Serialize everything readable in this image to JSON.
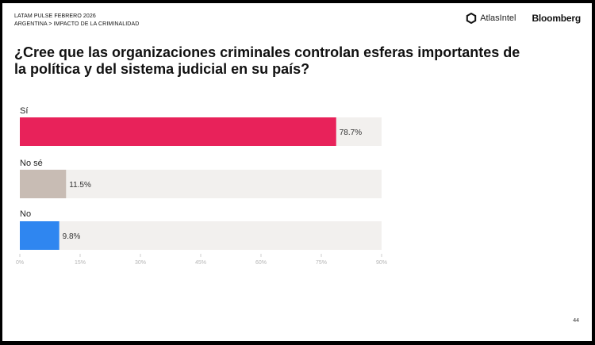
{
  "header": {
    "survey": "LATAM PULSE FEBRERO 2026",
    "breadcrumb": "ARGENTINA > IMPACTO DE LA CRIMINALIDAD",
    "logo_atlas": "AtlasIntel",
    "logo_bloomberg": "Bloomberg"
  },
  "question": "¿Cree que las organizaciones criminales controlan esferas importantes de la política y del sistema judicial en su país?",
  "page_number": "44",
  "chart_data": {
    "type": "bar",
    "orientation": "horizontal",
    "title": "",
    "categories": [
      "Sí",
      "No sé",
      "No"
    ],
    "values": [
      78.7,
      11.5,
      9.8
    ],
    "value_labels": [
      "78.7%",
      "11.5%",
      "9.8%"
    ],
    "colors": [
      "#e8225a",
      "#c8bcb4",
      "#2f86f0"
    ],
    "track_color": "#f2f0ee",
    "xlim": [
      0,
      90
    ],
    "ticks": [
      0,
      15,
      30,
      45,
      60,
      75,
      90
    ],
    "tick_labels": [
      "0%",
      "15%",
      "30%",
      "45%",
      "60%",
      "75%",
      "90%"
    ],
    "grid": false,
    "legend": "none"
  }
}
